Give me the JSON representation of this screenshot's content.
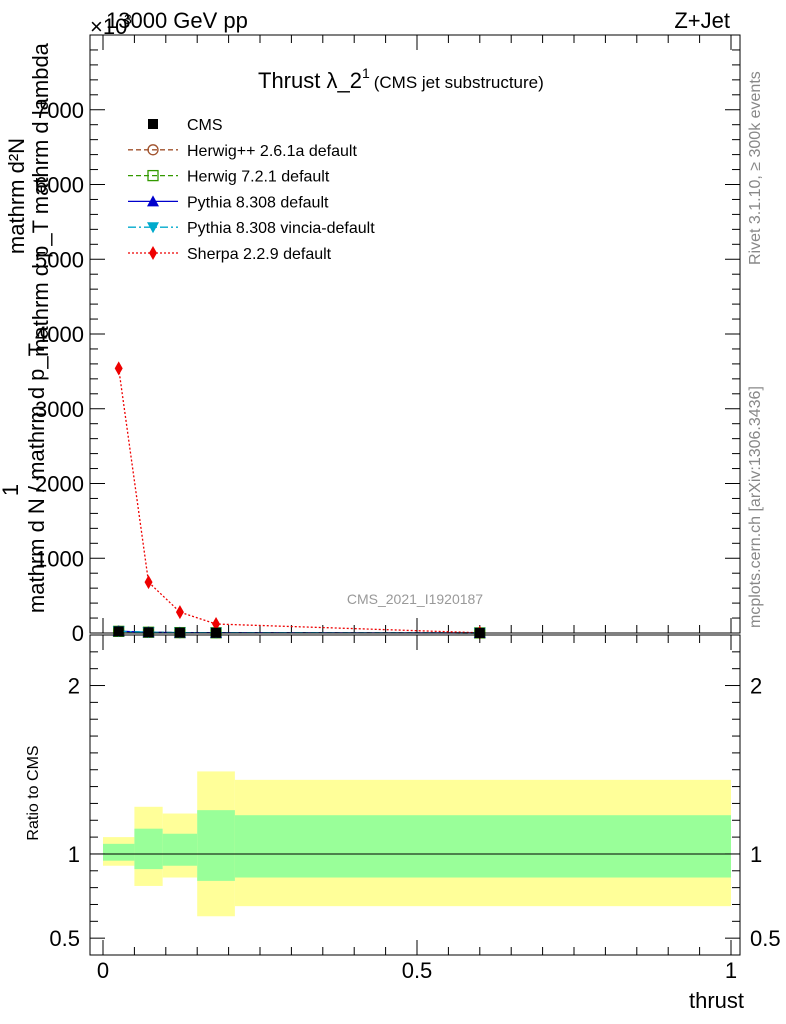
{
  "header": {
    "left": "13000 GeV pp",
    "right": "Z+Jet",
    "exponent": "×10",
    "exponent_power": "3"
  },
  "side_labels": {
    "rivet": "Rivet 3.1.10, ≥ 300k events",
    "mcplots": "mcplots.cern.ch [arXiv:1306.3436]"
  },
  "chart_data": [
    {
      "type": "line",
      "title": "Thrust λ_2",
      "title_sup": "1",
      "title_small": "(CMS jet substructure)",
      "watermark": "CMS_2021_I1920187",
      "ylabel_num": "mathrm d²N",
      "ylabel_den": "mathrm d p_T mathrm d lambda",
      "ylabel_one": "1",
      "ylabel_lower": "mathrm d N / mathrm d p_T",
      "xlim": [
        0,
        1
      ],
      "ylim": [
        0,
        8000
      ],
      "yticks": [
        0,
        1000,
        2000,
        3000,
        4000,
        5000,
        6000,
        7000
      ],
      "ytick_labels": [
        "0",
        "1000",
        "2000",
        "3000",
        "4000",
        "5000",
        "6000",
        "7000"
      ],
      "legend_position": "top-left",
      "series": [
        {
          "name": "CMS",
          "color": "#000000",
          "marker": "square-filled",
          "x": [
            0.025,
            0.0725,
            0.1225,
            0.18,
            0.6
          ],
          "y": [
            22,
            10,
            5,
            3,
            1
          ]
        },
        {
          "name": "Herwig++ 2.6.1a default",
          "color": "#a0522d",
          "marker": "circle-open",
          "dash": "dashed",
          "x": [
            0.025,
            0.0725,
            0.1225,
            0.18,
            0.6
          ],
          "y": [
            23,
            10,
            5,
            3,
            1
          ]
        },
        {
          "name": "Herwig 7.2.1 default",
          "color": "#339900",
          "marker": "square-open",
          "dash": "dashed",
          "x": [
            0.025,
            0.0725,
            0.1225,
            0.18,
            0.6
          ],
          "y": [
            22,
            10,
            5,
            3,
            1
          ]
        },
        {
          "name": "Pythia 8.308 default",
          "color": "#0000cc",
          "marker": "triangle-up",
          "dash": "solid",
          "x": [
            0.025,
            0.0725,
            0.1225,
            0.18,
            0.6
          ],
          "y": [
            24,
            10,
            5,
            3,
            1
          ]
        },
        {
          "name": "Pythia 8.308 vincia-default",
          "color": "#00aacc",
          "marker": "triangle-down",
          "dash": "dashdot",
          "x": [
            0.025,
            0.0725,
            0.1225,
            0.18,
            0.6
          ],
          "y": [
            23,
            10,
            5,
            3,
            1
          ]
        },
        {
          "name": "Sherpa 2.2.9 default",
          "color": "#ee0000",
          "marker": "diamond",
          "dash": "dotted",
          "x": [
            0.025,
            0.0725,
            0.1225,
            0.18,
            0.6
          ],
          "y": [
            3540,
            680,
            280,
            120,
            3
          ]
        }
      ]
    },
    {
      "type": "area",
      "ylabel": "Ratio to CMS",
      "xlabel": "thrust",
      "xlim": [
        0,
        1
      ],
      "ylim": [
        0.4,
        2.3
      ],
      "yticks": [
        0.5,
        1,
        2
      ],
      "ytick_labels": [
        "0.5",
        "1",
        "2"
      ],
      "xticks": [
        0,
        0.5,
        1
      ],
      "xtick_labels": [
        "0",
        "0.5",
        "1"
      ],
      "bands": {
        "edges": [
          0,
          0.05,
          0.095,
          0.15,
          0.21,
          1.0
        ],
        "outer_low": [
          0.93,
          0.81,
          0.86,
          0.63,
          0.69
        ],
        "outer_high": [
          1.1,
          1.28,
          1.24,
          1.49,
          1.44
        ],
        "inner_low": [
          0.96,
          0.91,
          0.93,
          0.84,
          0.86
        ],
        "inner_high": [
          1.06,
          1.15,
          1.12,
          1.26,
          1.23
        ],
        "outer_color": "#ffff99",
        "inner_color": "#99ff99"
      },
      "reference": 1
    }
  ]
}
